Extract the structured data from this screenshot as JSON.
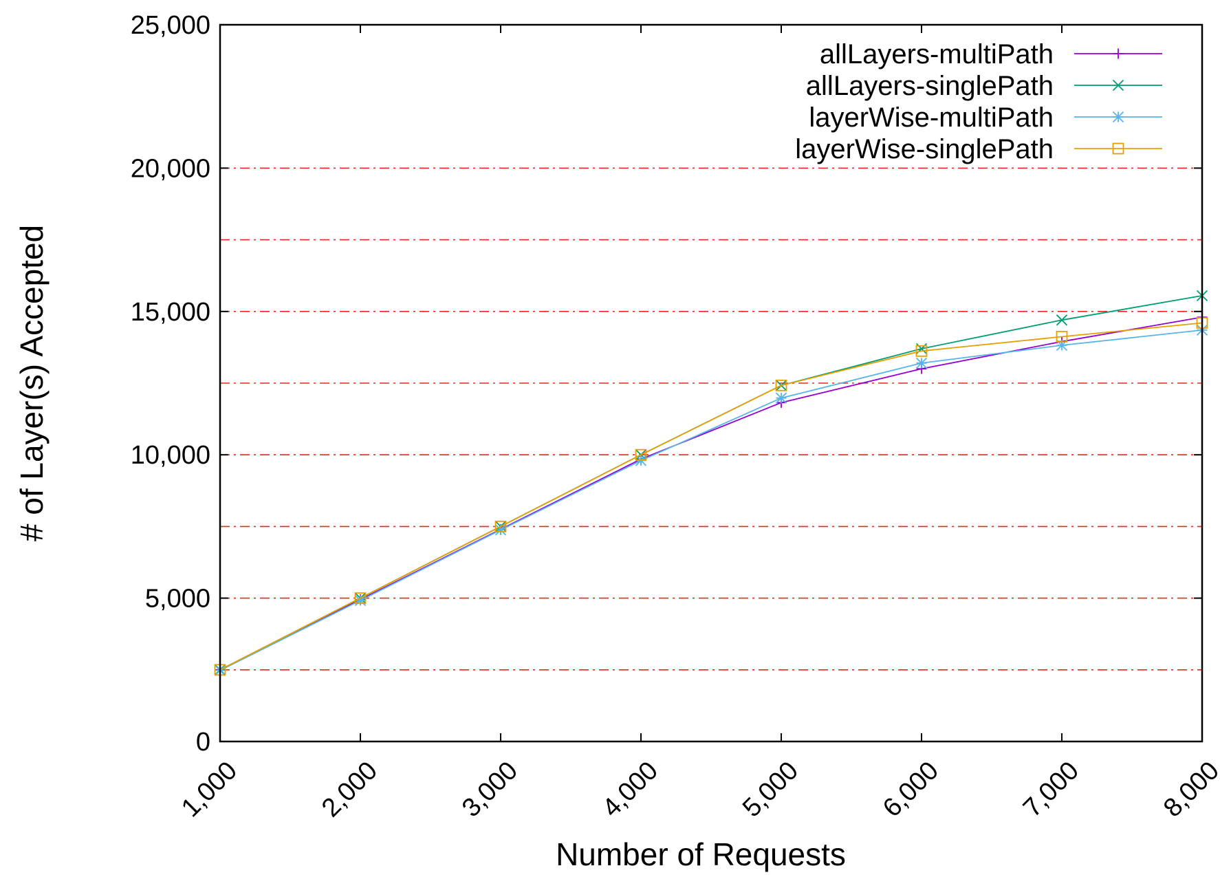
{
  "chart_data": {
    "type": "line",
    "title": "",
    "xlabel": "Number of Requests",
    "ylabel": "# of Layer(s) Accepted",
    "x": [
      1000,
      2000,
      3000,
      4000,
      5000,
      6000,
      7000,
      8000
    ],
    "xlim": [
      1000,
      8000
    ],
    "ylim": [
      0,
      25000
    ],
    "x_ticks": [
      "1,000",
      "2,000",
      "3,000",
      "4,000",
      "5,000",
      "6,000",
      "7,000",
      "8,000"
    ],
    "y_ticks": [
      "0",
      "5,000",
      "10,000",
      "15,000",
      "20,000",
      "25,000"
    ],
    "gridlines_y": [
      2500,
      5000,
      7500,
      10000,
      12500,
      15000,
      17500,
      20000
    ],
    "grid_color": "#e8281e",
    "legend_position": "top-right",
    "series": [
      {
        "name": "allLayers-multiPath",
        "color": "#9400d3",
        "marker": "plus",
        "values": [
          2500,
          4950,
          7400,
          9850,
          11820,
          13000,
          13950,
          14800
        ]
      },
      {
        "name": "allLayers-singlePath",
        "color": "#009e73",
        "marker": "cross",
        "values": [
          2500,
          5000,
          7500,
          10000,
          12420,
          13700,
          14700,
          15550
        ]
      },
      {
        "name": "layerWise-multiPath",
        "color": "#56b4e9",
        "marker": "star",
        "values": [
          2480,
          4920,
          7380,
          9800,
          11980,
          13200,
          13820,
          14350
        ]
      },
      {
        "name": "layerWise-singlePath",
        "color": "#e69f00",
        "marker": "square",
        "values": [
          2500,
          5000,
          7500,
          10000,
          12420,
          13620,
          14120,
          14600
        ]
      }
    ]
  }
}
